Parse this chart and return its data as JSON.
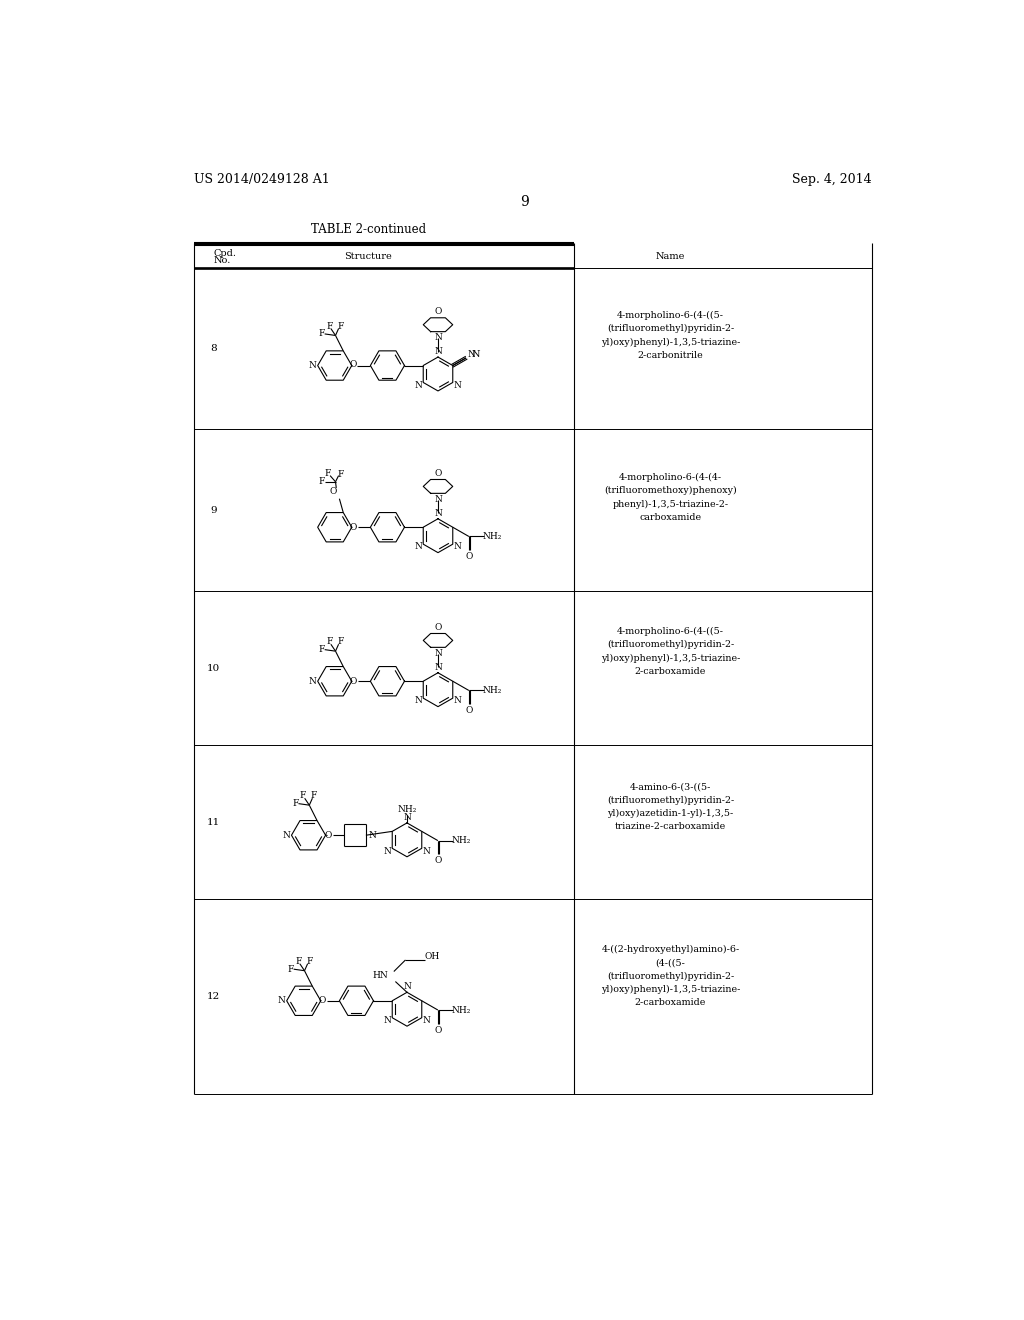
{
  "page_number": "9",
  "left_header": "US 2014/0249128 A1",
  "right_header": "Sep. 4, 2014",
  "table_title": "TABLE 2-continued",
  "background_color": "#ffffff",
  "names": [
    "4-morpholino-6-(4-((5-\n(trifluoromethyl)pyridin-2-\nyl)oxy)phenyl)-1,3,5-triazine-\n2-carbonitrile",
    "4-morpholino-6-(4-(4-\n(trifluoromethoxy)phenoxy)\nphenyl)-1,3,5-triazine-2-\ncarboxamide",
    "4-morpholino-6-(4-((5-\n(trifluoromethyl)pyridin-2-\nyl)oxy)phenyl)-1,3,5-triazine-\n2-carboxamide",
    "4-amino-6-(3-((5-\n(trifluoromethyl)pyridin-2-\nyl)oxy)azetidin-1-yl)-1,3,5-\ntriazine-2-carboxamide",
    "4-((2-hydroxyethyl)amino)-6-\n(4-((5-\n(trifluoromethyl)pyridin-2-\nyl)oxy)phenyl)-1,3,5-triazine-\n2-carboxamide"
  ],
  "cpd_numbers": [
    "8",
    "9",
    "10",
    "11",
    "12"
  ]
}
